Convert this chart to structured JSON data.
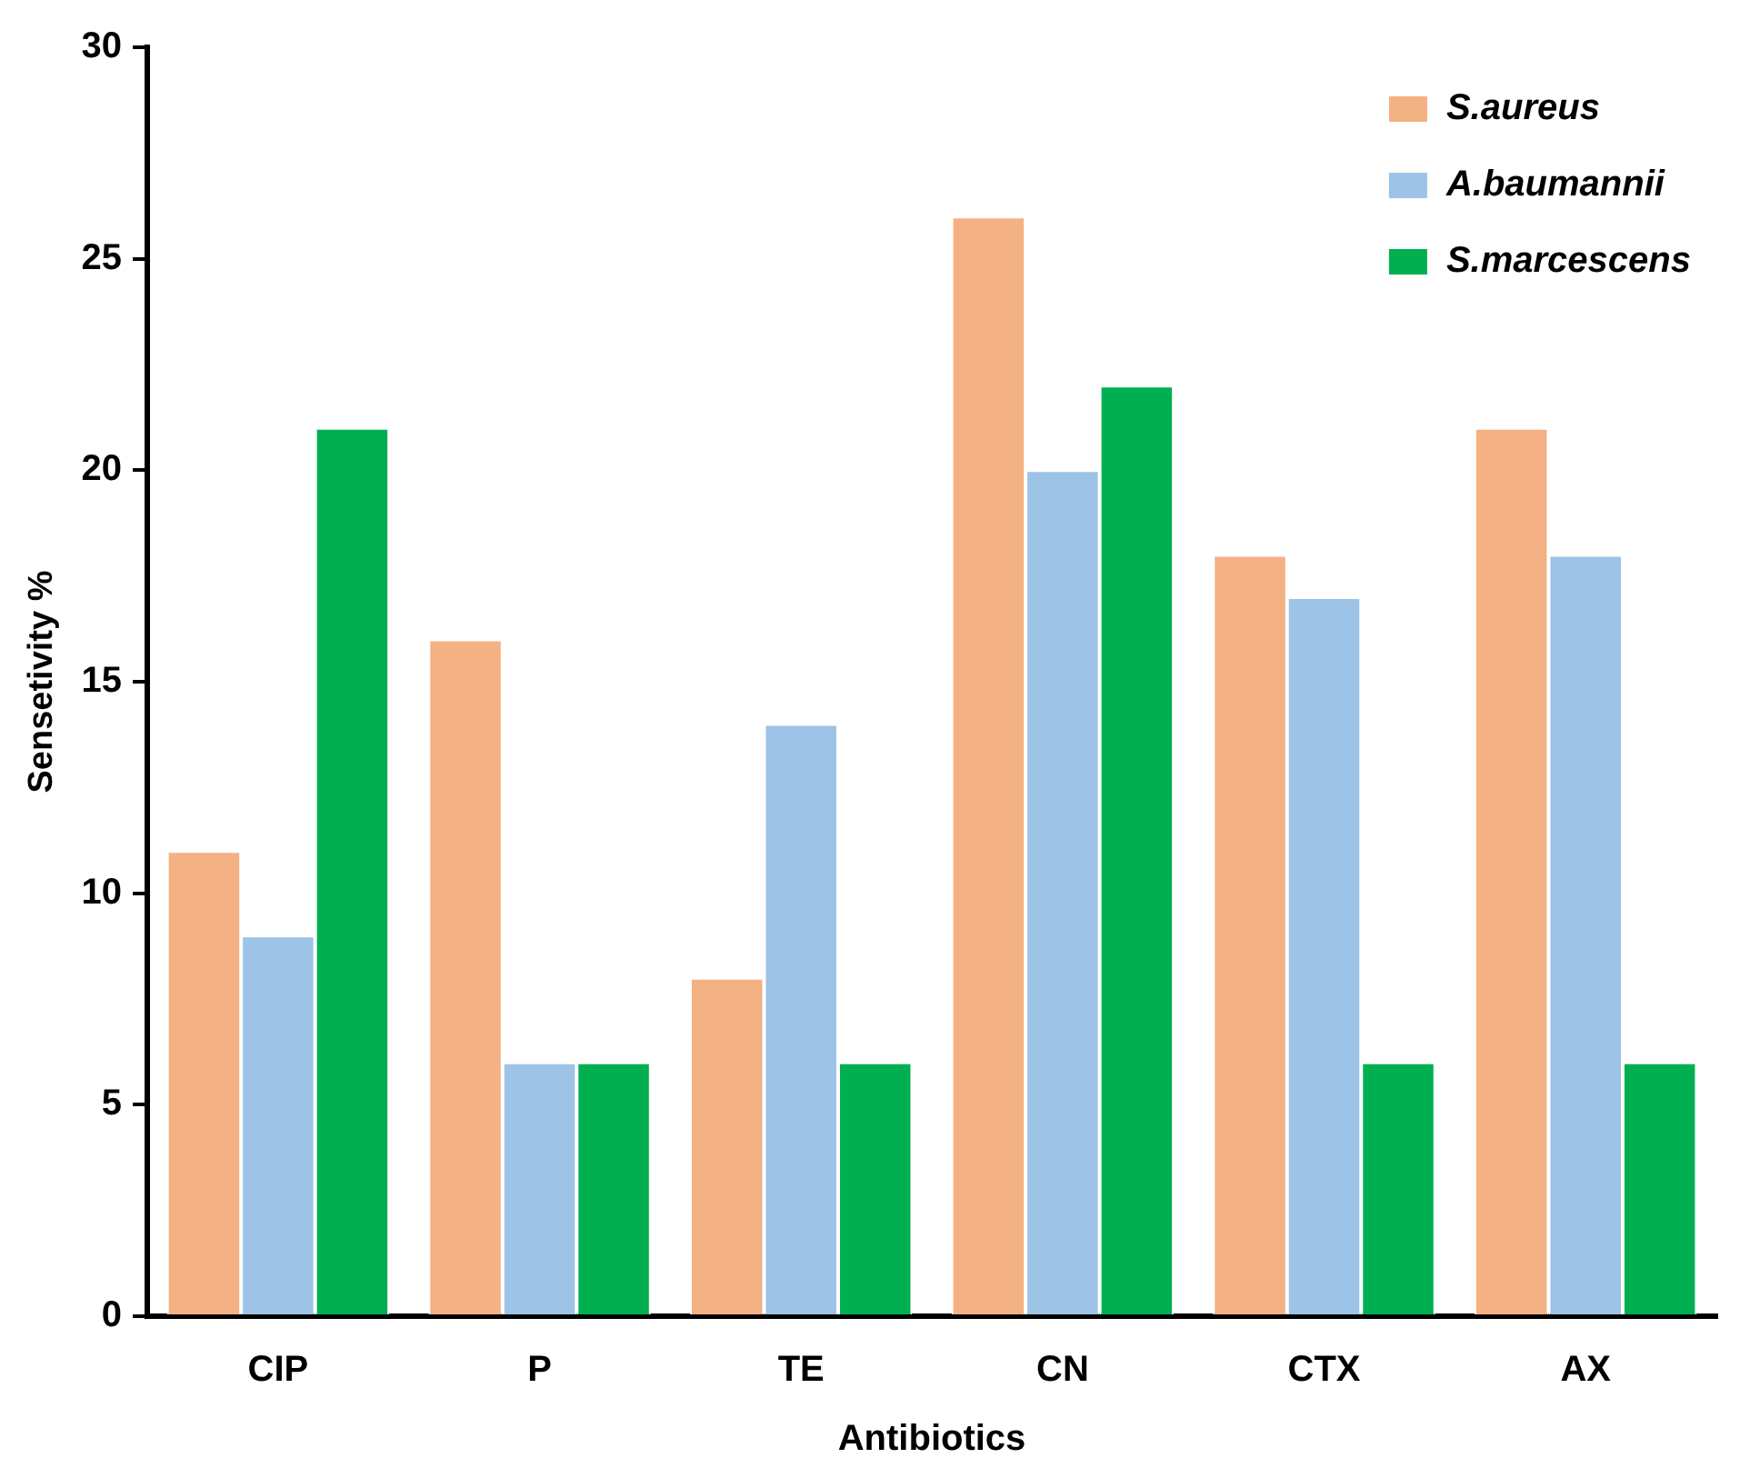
{
  "chart_data": {
    "type": "bar",
    "xlabel": "Antibiotics",
    "ylabel": "Sensetivity %",
    "categories": [
      "CIP",
      "P",
      "TE",
      "CN",
      "CTX",
      "AX"
    ],
    "series": [
      {
        "name": "S.aureus",
        "color": "#f4b183",
        "values": [
          11,
          16,
          8,
          26,
          18,
          21
        ]
      },
      {
        "name": "A.baumannii",
        "color": "#9dc3e6",
        "values": [
          9,
          6,
          14,
          20,
          17,
          18
        ]
      },
      {
        "name": "S.marcescens",
        "color": "#00b050",
        "values": [
          21,
          6,
          6,
          22,
          6,
          6
        ]
      }
    ],
    "ylim": [
      0,
      30
    ],
    "yticks": [
      0,
      5,
      10,
      15,
      20,
      25,
      30
    ],
    "grid": false,
    "legend": "top right"
  }
}
